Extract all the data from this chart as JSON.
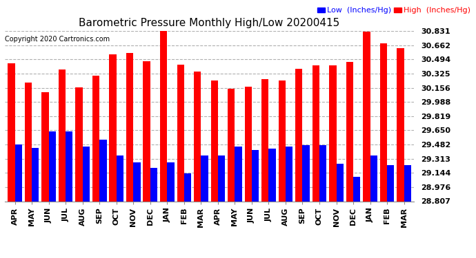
{
  "title": "Barometric Pressure Monthly High/Low 20200415",
  "copyright": "Copyright 2020 Cartronics.com",
  "legend_low": "Low  (Inches/Hg)",
  "legend_high": "High  (Inches/Hg)",
  "months": [
    "APR",
    "MAY",
    "JUN",
    "JUL",
    "AUG",
    "SEP",
    "OCT",
    "NOV",
    "DEC",
    "JAN",
    "FEB",
    "MAR",
    "APR",
    "MAY",
    "JUN",
    "JUL",
    "AUG",
    "SEP",
    "OCT",
    "NOV",
    "DEC",
    "JAN",
    "FEB",
    "MAR"
  ],
  "high_values": [
    30.45,
    30.22,
    30.1,
    30.37,
    30.16,
    30.3,
    30.55,
    30.57,
    30.47,
    30.83,
    30.43,
    30.35,
    30.24,
    30.14,
    30.17,
    30.26,
    30.24,
    30.38,
    30.42,
    30.42,
    30.46,
    30.82,
    30.68,
    30.63
  ],
  "low_values": [
    29.48,
    29.44,
    29.64,
    29.64,
    29.46,
    29.54,
    29.35,
    29.27,
    29.2,
    29.27,
    29.14,
    29.35,
    29.35,
    29.46,
    29.42,
    29.43,
    29.46,
    29.47,
    29.47,
    29.25,
    29.1,
    29.35,
    29.24,
    29.24
  ],
  "y_min": 28.807,
  "y_max": 30.831,
  "y_ticks": [
    28.807,
    28.976,
    29.144,
    29.313,
    29.482,
    29.65,
    29.819,
    29.988,
    30.156,
    30.325,
    30.494,
    30.662,
    30.831
  ],
  "bar_color_high": "#ff0000",
  "bar_color_low": "#0000ff",
  "background_color": "#ffffff",
  "grid_color": "#b0b0b0",
  "title_fontsize": 11,
  "copyright_fontsize": 7,
  "tick_fontsize": 8,
  "legend_fontsize": 8
}
